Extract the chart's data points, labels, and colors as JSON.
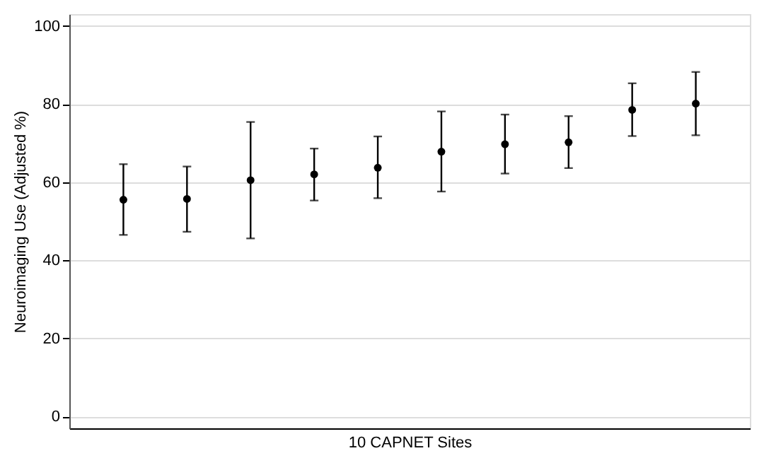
{
  "chart_data": {
    "type": "scatter",
    "xlabel": "10 CAPNET Sites",
    "ylabel": "Neuroimaging Use (Adjusted %)",
    "categories": [
      null,
      null,
      null,
      null,
      null,
      null,
      null,
      null,
      null,
      null
    ],
    "values": [
      55.5,
      55.7,
      60.5,
      62.0,
      63.7,
      67.8,
      69.7,
      70.2,
      78.5,
      80.1
    ],
    "errors": [
      [
        46.5,
        64.6
      ],
      [
        47.3,
        64.0
      ],
      [
        45.6,
        75.4
      ],
      [
        55.3,
        68.6
      ],
      [
        55.9,
        71.7
      ],
      [
        57.6,
        78.1
      ],
      [
        62.2,
        77.3
      ],
      [
        63.6,
        76.9
      ],
      [
        71.8,
        85.3
      ],
      [
        72.0,
        88.2
      ]
    ],
    "color": "#000000",
    "marker": "circle",
    "ylim": [
      -3,
      103
    ],
    "yticks": [
      0,
      20,
      40,
      60,
      80,
      100
    ],
    "grid": "y",
    "tick_labels": "y"
  }
}
